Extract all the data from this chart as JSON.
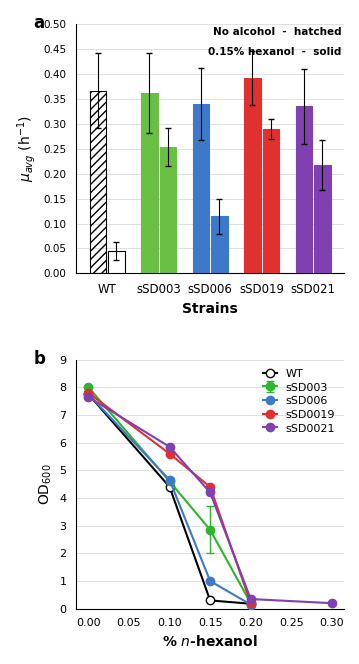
{
  "panel_a": {
    "strains": [
      "WT",
      "sSD003",
      "sSD006",
      "sSD019",
      "sSD021"
    ],
    "no_alcohol": {
      "values": [
        0.367,
        0.362,
        0.34,
        0.392,
        0.335
      ],
      "errors": [
        0.075,
        0.08,
        0.072,
        0.055,
        0.075
      ],
      "facecolors": [
        "none",
        "#6abf45",
        "#3e78c8",
        "#e03030",
        "#8040b0"
      ],
      "edgecolors": [
        "#000000",
        "#6abf45",
        "#3e78c8",
        "#e03030",
        "#8040b0"
      ]
    },
    "hexanol": {
      "values": [
        0.044,
        0.254,
        0.115,
        0.29,
        0.218
      ],
      "errors": [
        0.018,
        0.038,
        0.035,
        0.02,
        0.05
      ],
      "facecolors": [
        "#ffffff",
        "#6abf45",
        "#3e78c8",
        "#e03030",
        "#8040b0"
      ],
      "edgecolors": [
        "#000000",
        "#6abf45",
        "#3e78c8",
        "#e03030",
        "#8040b0"
      ]
    },
    "ylabel": "$\\mu_{avg}$ (h$^{-1}$)",
    "xlabel": "Strains",
    "ylim": [
      0,
      0.5
    ],
    "yticks": [
      0.0,
      0.05,
      0.1,
      0.15,
      0.2,
      0.25,
      0.3,
      0.35,
      0.4,
      0.45,
      0.5
    ],
    "legend_text1": "No alcohol  -  hatched",
    "legend_text2": "0.15% hexanol  -  solid",
    "panel_label": "a"
  },
  "panel_b": {
    "xlabel": "% n-hexanol",
    "ylabel": "OD$_{600}$",
    "ylim": [
      0,
      9
    ],
    "yticks": [
      0,
      1,
      2,
      3,
      4,
      5,
      6,
      7,
      8,
      9
    ],
    "xticks": [
      0.0,
      0.05,
      0.1,
      0.15,
      0.2,
      0.25,
      0.3
    ],
    "panel_label": "b",
    "series": {
      "WT": {
        "x": [
          0.0,
          0.1,
          0.15,
          0.2
        ],
        "y": [
          7.75,
          4.4,
          0.3,
          0.18
        ],
        "yerr": [
          0.0,
          0.0,
          0.0,
          0.0
        ],
        "color": "#000000",
        "markerfacecolor": "white",
        "label": "WT"
      },
      "sSD003": {
        "x": [
          0.0,
          0.1,
          0.15,
          0.2
        ],
        "y": [
          8.0,
          4.6,
          2.85,
          0.2
        ],
        "yerr": [
          0.0,
          0.0,
          0.85,
          0.0
        ],
        "color": "#2db52d",
        "markerfacecolor": "#2db52d",
        "label": "sSD003"
      },
      "sSD006": {
        "x": [
          0.0,
          0.1,
          0.15,
          0.2
        ],
        "y": [
          7.75,
          4.65,
          1.0,
          0.15
        ],
        "yerr": [
          0.0,
          0.0,
          0.0,
          0.0
        ],
        "color": "#3e78c8",
        "markerfacecolor": "#3e78c8",
        "label": "sSD006"
      },
      "sSD0019": {
        "x": [
          0.0,
          0.1,
          0.15,
          0.2
        ],
        "y": [
          7.8,
          5.6,
          4.4,
          0.2
        ],
        "yerr": [
          0.0,
          0.0,
          0.0,
          0.0
        ],
        "color": "#e03030",
        "markerfacecolor": "#e03030",
        "label": "sSD0019"
      },
      "sSD0021": {
        "x": [
          0.0,
          0.1,
          0.15,
          0.2,
          0.3
        ],
        "y": [
          7.65,
          5.85,
          4.2,
          0.35,
          0.2
        ],
        "yerr": [
          0.0,
          0.0,
          0.0,
          0.0,
          0.0
        ],
        "color": "#8040b0",
        "markerfacecolor": "#8040b0",
        "label": "sSD0021"
      }
    },
    "legend_order": [
      "WT",
      "sSD003",
      "sSD006",
      "sSD0019",
      "sSD0021"
    ]
  }
}
